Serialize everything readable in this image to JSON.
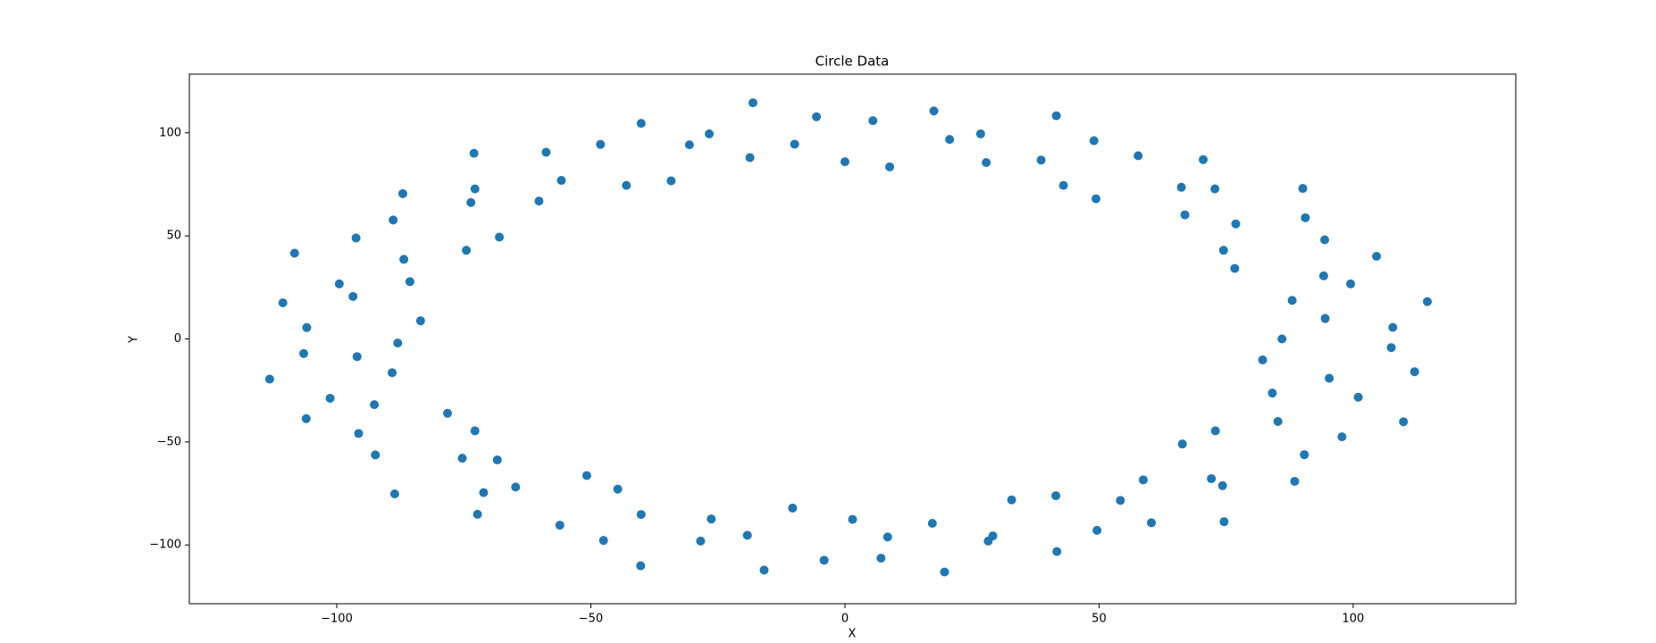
{
  "chart_data": {
    "type": "scatter",
    "title": "Circle Data",
    "x_label": "X",
    "y_label": "Y",
    "color": "#1f77b4",
    "grid": false,
    "x": [
      86,
      107.8,
      94.5,
      114.6,
      88.0,
      99.5,
      94.2,
      104.6,
      76.7,
      94.4,
      74.5,
      90.6,
      76.9,
      90.1,
      66.9,
      72.8,
      66.2,
      70.5,
      49.4,
      57.7,
      43.0,
      49.0,
      38.6,
      41.6,
      27.8,
      26.7,
      20.6,
      17.5,
      8.8,
      5.5,
      0,
      -5.6,
      -9.9,
      -18.1,
      -18.7,
      -26.7,
      -30.6,
      -40.1,
      -34.2,
      -48.1,
      -43.0,
      -58.8,
      -55.8,
      -73.0,
      -60.2,
      -72.8,
      -73.6,
      -87.0,
      -68.0,
      -88.9,
      -74.5,
      -96.2,
      -86.8,
      -108.3,
      -85.6,
      -99.5,
      -96.8,
      -110.6,
      -83.5,
      -105.9,
      -88,
      -106.5,
      -96,
      -113.2,
      -89.1,
      -101.3,
      -92.6,
      -106,
      -78.2,
      -95.7,
      -72.8,
      -92.4,
      -75.3,
      -88.6,
      -68.4,
      -71.1,
      -64.8,
      -72.3,
      -50.8,
      -56.1,
      -44.7,
      -47.5,
      -40.1,
      -40.2,
      -26.3,
      -28.4,
      -19.2,
      -15.9,
      -10.3,
      -4.1,
      1.5,
      7.1,
      8.4,
      19.6,
      17.2,
      28.2,
      29.1,
      41.7,
      32.8,
      49.6,
      41.5,
      60.3,
      54.2,
      74.6,
      58.7,
      74.3,
      72.1,
      88.5,
      66.4,
      90.4,
      72.9,
      97.8,
      85.2,
      109.9,
      84.1,
      101.0,
      95.3,
      112.1,
      82.2,
      107.5
    ],
    "y": [
      0,
      5.6,
      9.9,
      18.1,
      18.7,
      26.7,
      30.6,
      40.1,
      34.2,
      48.1,
      43.0,
      58.8,
      55.8,
      73.0,
      60.2,
      72.8,
      73.6,
      87.0,
      68.0,
      88.9,
      74.5,
      96.2,
      86.8,
      108.3,
      85.6,
      99.5,
      96.8,
      110.6,
      83.5,
      105.9,
      86,
      107.8,
      94.5,
      114.6,
      88.0,
      99.5,
      94.2,
      104.6,
      76.7,
      94.4,
      74.5,
      90.6,
      76.9,
      90.1,
      66.9,
      72.8,
      66.2,
      70.5,
      49.4,
      57.7,
      43.0,
      49.0,
      38.6,
      41.6,
      27.8,
      26.7,
      20.6,
      17.5,
      8.8,
      5.5,
      -2,
      -7.1,
      -8.6,
      -19.5,
      -16.4,
      -28.8,
      -31.9,
      -38.7,
      -36.1,
      -45.9,
      -44.6,
      -56.3,
      -57.9,
      -75.2,
      -58.7,
      -74.6,
      -71.9,
      -85.1,
      -66.3,
      -90.4,
      -72.9,
      -97.8,
      -85.2,
      -110.1,
      -87.4,
      -98.1,
      -95.3,
      -112.2,
      -82.1,
      -107.4,
      -87.6,
      -106.4,
      -96.1,
      -113.1,
      -89.5,
      -98.1,
      -95.6,
      -103.2,
      -78.1,
      -92.9,
      -76.1,
      -89.2,
      -78.4,
      -88.7,
      -68.4,
      -71.2,
      -67.8,
      -69.1,
      -51.0,
      -56.2,
      -44.6,
      -47.5,
      -40.1,
      -40.2,
      -26.3,
      -28.3,
      -19.1,
      -15.9,
      -10.2,
      -4.2
    ],
    "xlim": [
      -129,
      132
    ],
    "ylim": [
      -128.5,
      128.5
    ],
    "xticks": [
      {
        "value": -100,
        "label": "−100"
      },
      {
        "value": -50,
        "label": "−50"
      },
      0,
      50,
      100
    ],
    "yticks": [
      {
        "value": -100,
        "label": "−100"
      },
      {
        "value": -50,
        "label": "−50"
      },
      0,
      50,
      100
    ]
  }
}
